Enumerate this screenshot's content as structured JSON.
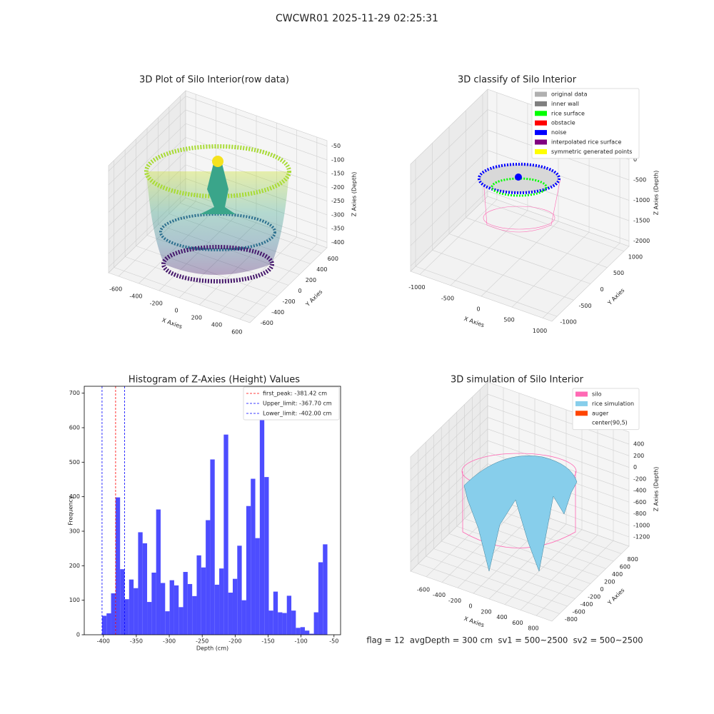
{
  "suptitle": "CWCWR01 2025-11-29 02:25:31",
  "chart_data": [
    {
      "type": "scatter3d",
      "title": "3D Plot of Silo Interior(row data)",
      "xlabel": "X Axies",
      "ylabel": "Y Axies",
      "zlabel": "Z Axies (Depth)",
      "xlim": [
        -700,
        700
      ],
      "ylim": [
        -700,
        700
      ],
      "zlim": [
        -420,
        -30
      ],
      "xticks": [
        -600,
        -400,
        -200,
        0,
        200,
        400,
        600
      ],
      "yticks": [
        -600,
        -400,
        -200,
        0,
        200,
        400,
        600
      ],
      "zticks": [
        -50,
        -100,
        -150,
        -200,
        -250,
        -300,
        -350,
        -400
      ]
    },
    {
      "type": "scatter3d",
      "title": "3D classify of Silo Interior",
      "xlabel": "X Axies",
      "ylabel": "Y Axies",
      "zlabel": "Z Axies (Depth)",
      "xlim": [
        -1150,
        1150
      ],
      "ylim": [
        -1150,
        1150
      ],
      "zlim": [
        -2130,
        500
      ],
      "xticks": [
        -1000,
        -500,
        0,
        500,
        1000
      ],
      "yticks": [
        -1000,
        -500,
        0,
        500,
        1000
      ],
      "zticks": [
        0,
        -500,
        -1000,
        -1500,
        -2000
      ],
      "legend": "upper right",
      "series": [
        {
          "name": "original data",
          "color": "#b0b0b0"
        },
        {
          "name": "inner wall",
          "color": "#808080"
        },
        {
          "name": "rice surface",
          "color": "#00ff00"
        },
        {
          "name": "obstacle",
          "color": "#ff0000"
        },
        {
          "name": "noise",
          "color": "#0000ff"
        },
        {
          "name": "interpolated rice surface",
          "color": "#800080"
        },
        {
          "name": "symmetric generated points",
          "color": "#ffff00"
        }
      ]
    },
    {
      "type": "histogram",
      "title": "Histogram of Z-Axies (Height) Values",
      "xlabel": "Depth (cm)",
      "ylabel": "Frequency",
      "color": "#4d4dff",
      "xlim": [
        -429,
        -40
      ],
      "ylim": [
        0,
        720
      ],
      "xticks": [
        -400,
        -350,
        -300,
        -250,
        -200,
        -150,
        -100,
        -50
      ],
      "yticks": [
        0,
        100,
        200,
        300,
        400,
        500,
        600,
        700
      ],
      "bins": [
        -402,
        -395.16,
        -388.32,
        -381.48,
        -374.64,
        -367.8,
        -360.96,
        -354.12,
        -347.28,
        -340.44,
        -333.6,
        -326.76,
        -319.92,
        -313.08,
        -306.24,
        -299.4,
        -292.56,
        -285.72,
        -278.88,
        -272.04,
        -265.2,
        -258.36,
        -251.52,
        -244.68,
        -237.84,
        -231,
        -224.16,
        -217.32,
        -210.48,
        -203.64,
        -196.8,
        -189.96,
        -183.12,
        -176.28,
        -169.44,
        -162.6,
        -155.76,
        -148.92,
        -142.08,
        -135.24,
        -128.4,
        -121.56,
        -114.72,
        -107.88,
        -101.04,
        -94.2,
        -87.36,
        -80.52,
        -73.68,
        -66.84,
        -60
      ],
      "values": [
        55,
        62,
        120,
        398,
        190,
        103,
        160,
        135,
        297,
        265,
        95,
        180,
        363,
        150,
        68,
        158,
        143,
        80,
        182,
        147,
        112,
        230,
        195,
        332,
        508,
        145,
        192,
        580,
        122,
        162,
        258,
        100,
        373,
        452,
        280,
        660,
        457,
        70,
        125,
        65,
        63,
        113,
        70,
        20,
        22,
        12,
        3,
        65,
        210,
        262
      ],
      "legend": "upper right",
      "vlines": [
        {
          "label": "first_peak: -381.42 cm",
          "value": -381.42,
          "color": "#ff0000"
        },
        {
          "label": "Upper_limit: -367.70 cm",
          "value": -367.7,
          "color": "#0000ff"
        },
        {
          "label": "Lower_limit: -402.00 cm",
          "value": -402,
          "color": "#0000ff"
        }
      ]
    },
    {
      "type": "surface3d",
      "title": "3D simulation of Silo Interior",
      "xlabel": "X Axies",
      "ylabel": "Y Axies",
      "zlabel": "Z Axies (Depth)",
      "xlim": [
        -800,
        1000
      ],
      "ylim": [
        -1000,
        1000
      ],
      "zlim": [
        -1360,
        610
      ],
      "xticks": [
        -600,
        -400,
        -200,
        0,
        200,
        400,
        600,
        800
      ],
      "yticks": [
        -800,
        -600,
        -400,
        -200,
        0,
        200,
        400,
        600,
        800
      ],
      "zticks": [
        400,
        200,
        0,
        -200,
        -400,
        -600,
        -800,
        -1000,
        -1200
      ],
      "legend": "upper right",
      "series": [
        {
          "name": "silo",
          "color": "#ff69b4"
        },
        {
          "name": "rice simulation",
          "color": "#87ceeb"
        },
        {
          "name": "auger",
          "color": "#ff4500"
        },
        {
          "name": "center(90,5)",
          "color": "#ffffff"
        }
      ],
      "annotation": "flag = 12  avgDepth = 300 cm  sv1 = 500~2500  sv2 = 500~2500"
    }
  ]
}
